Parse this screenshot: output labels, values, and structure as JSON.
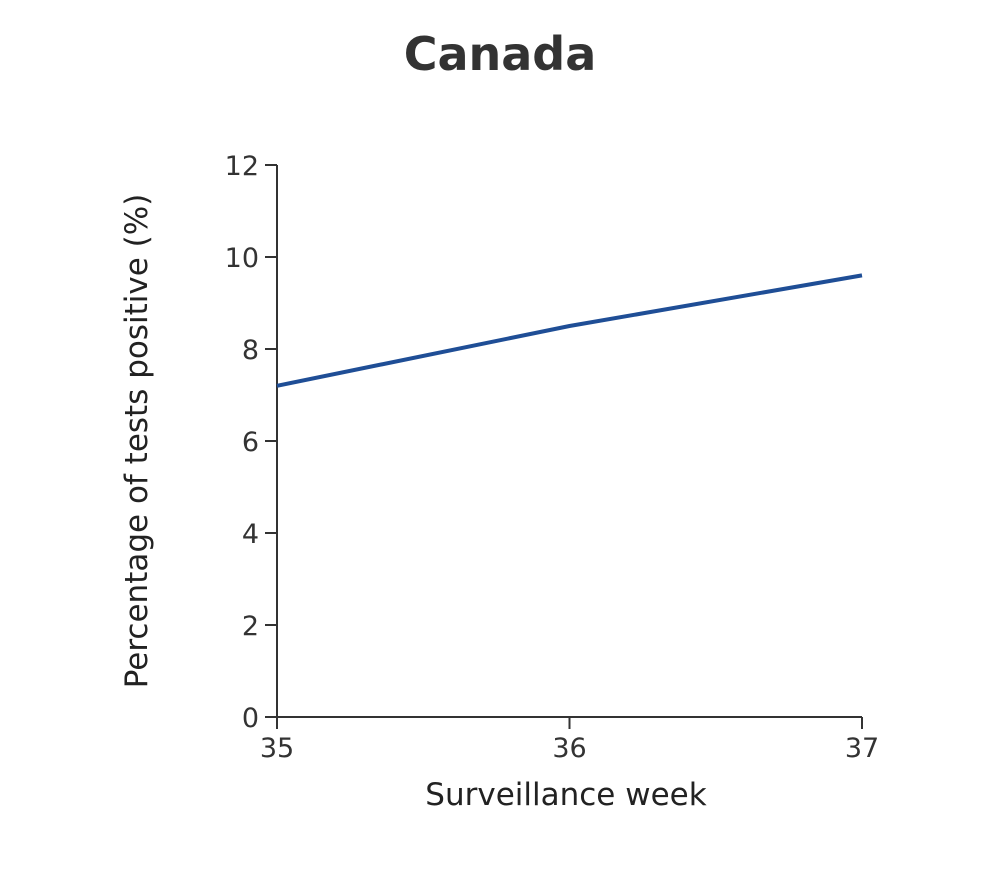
{
  "chart_data": {
    "type": "line",
    "title": "Canada",
    "xlabel": "Surveillance week",
    "ylabel": "Percentage of tests positive (%)",
    "x": [
      35,
      36,
      37
    ],
    "xticks": [
      "35",
      "36",
      "37"
    ],
    "yticks": [
      "0",
      "2",
      "4",
      "6",
      "8",
      "10",
      "12"
    ],
    "xlim": [
      35,
      37
    ],
    "ylim": [
      0,
      12
    ],
    "grid": false,
    "legend": "none",
    "series": [
      {
        "values": [
          7.2,
          8.5,
          9.6
        ],
        "color": "#1f4e96"
      }
    ]
  }
}
